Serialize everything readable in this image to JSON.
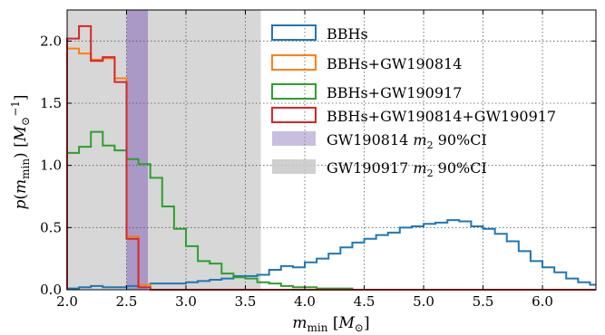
{
  "chart_data": {
    "type": "histogram",
    "xlabel": "m_min [M_⊙]",
    "ylabel": "p(m_min) [M_⊙^-1]",
    "xlim": [
      2.0,
      6.45
    ],
    "ylim": [
      0.0,
      2.25
    ],
    "xticks": [
      2.0,
      2.5,
      3.0,
      3.5,
      4.0,
      4.5,
      5.0,
      5.5,
      6.0
    ],
    "xtick_labels": [
      "2.0",
      "2.5",
      "3.0",
      "3.5",
      "4.0",
      "4.5",
      "5.0",
      "5.5",
      "6.0"
    ],
    "yticks": [
      0.0,
      0.5,
      1.0,
      1.5,
      2.0
    ],
    "ytick_labels": [
      "0.0",
      "0.5",
      "1.0",
      "1.5",
      "2.0"
    ],
    "grid": true,
    "legend_position": "top-right",
    "bin_width": 0.1,
    "bins": [
      [
        2.0,
        2.1
      ],
      [
        2.1,
        2.2
      ],
      [
        2.2,
        2.3
      ],
      [
        2.3,
        2.4
      ],
      [
        2.4,
        2.5
      ],
      [
        2.5,
        2.6
      ],
      [
        2.6,
        2.7
      ],
      [
        2.7,
        2.8
      ],
      [
        2.8,
        2.9
      ],
      [
        2.9,
        3.0
      ],
      [
        3.0,
        3.1
      ],
      [
        3.1,
        3.2
      ],
      [
        3.2,
        3.3
      ],
      [
        3.3,
        3.4
      ],
      [
        3.4,
        3.5
      ],
      [
        3.5,
        3.6
      ],
      [
        3.6,
        3.7
      ],
      [
        3.7,
        3.8
      ],
      [
        3.8,
        3.9
      ],
      [
        3.9,
        4.0
      ],
      [
        4.0,
        4.1
      ],
      [
        4.1,
        4.2
      ],
      [
        4.2,
        4.3
      ],
      [
        4.3,
        4.4
      ],
      [
        4.4,
        4.5
      ],
      [
        4.5,
        4.6
      ],
      [
        4.6,
        4.7
      ],
      [
        4.7,
        4.8
      ],
      [
        4.8,
        4.9
      ],
      [
        4.9,
        5.0
      ],
      [
        5.0,
        5.1
      ],
      [
        5.1,
        5.2
      ],
      [
        5.2,
        5.3
      ],
      [
        5.3,
        5.4
      ],
      [
        5.4,
        5.5
      ],
      [
        5.5,
        5.6
      ],
      [
        5.6,
        5.7
      ],
      [
        5.7,
        5.8
      ],
      [
        5.8,
        5.9
      ],
      [
        5.9,
        6.0
      ],
      [
        6.0,
        6.1
      ],
      [
        6.1,
        6.2
      ],
      [
        6.2,
        6.3
      ],
      [
        6.3,
        6.4
      ],
      [
        6.4,
        6.45
      ]
    ],
    "bands": [
      {
        "name": "GW190814  m2  90%CI",
        "x0": 2.5,
        "x1": 2.68,
        "color": "#9f88c3",
        "opacity": 0.8
      },
      {
        "name": "GW190917  m2  90%CI",
        "x0": 2.0,
        "x1": 3.63,
        "color": "#c8c8c8",
        "opacity": 0.72
      }
    ],
    "series": [
      {
        "name": "BBHs",
        "color": "#1f77b4",
        "values": [
          0.01,
          0.02,
          0.03,
          0.02,
          0.02,
          0.03,
          0.04,
          0.05,
          0.05,
          0.05,
          0.06,
          0.07,
          0.08,
          0.09,
          0.11,
          0.11,
          0.12,
          0.16,
          0.19,
          0.18,
          0.22,
          0.25,
          0.29,
          0.34,
          0.38,
          0.41,
          0.44,
          0.46,
          0.5,
          0.51,
          0.53,
          0.54,
          0.56,
          0.55,
          0.51,
          0.49,
          0.45,
          0.39,
          0.31,
          0.23,
          0.18,
          0.14,
          0.09,
          0.06,
          0.04
        ]
      },
      {
        "name": "BBHs+GW190814",
        "color": "#ff7f0e",
        "values": [
          1.94,
          1.9,
          1.85,
          1.86,
          1.7,
          0.43,
          0.04,
          0,
          0,
          0,
          0,
          0,
          0,
          0,
          0,
          0,
          0,
          0,
          0,
          0,
          0,
          0,
          0,
          0,
          0,
          0,
          0,
          0,
          0,
          0,
          0,
          0,
          0,
          0,
          0,
          0,
          0,
          0,
          0,
          0,
          0,
          0,
          0,
          0,
          0
        ]
      },
      {
        "name": "BBHs+GW190917",
        "color": "#2ca02c",
        "values": [
          1.1,
          1.15,
          1.27,
          1.16,
          1.12,
          1.05,
          1.01,
          0.9,
          0.67,
          0.49,
          0.35,
          0.23,
          0.21,
          0.13,
          0.1,
          0.09,
          0.06,
          0.05,
          0.03,
          0.02,
          0.02,
          0.01,
          0.01,
          0.01,
          0,
          0,
          0,
          0,
          0,
          0,
          0,
          0,
          0,
          0,
          0,
          0,
          0,
          0,
          0,
          0,
          0,
          0,
          0,
          0,
          0
        ]
      },
      {
        "name": "BBHs+GW190814+GW190917",
        "color": "#d62728",
        "values": [
          2.02,
          2.12,
          1.84,
          1.87,
          1.67,
          0.41,
          0.02,
          0,
          0,
          0,
          0,
          0,
          0,
          0,
          0,
          0,
          0,
          0,
          0,
          0,
          0,
          0,
          0,
          0,
          0,
          0,
          0,
          0,
          0,
          0,
          0,
          0,
          0,
          0,
          0,
          0,
          0,
          0,
          0,
          0,
          0,
          0,
          0,
          0,
          0
        ]
      }
    ],
    "legend_entries": [
      "BBHs",
      "BBHs+GW190814",
      "BBHs+GW190917",
      "BBHs+GW190814+GW190917",
      "GW190814  m2  90%CI",
      "GW190917  m2  90%CI"
    ]
  }
}
